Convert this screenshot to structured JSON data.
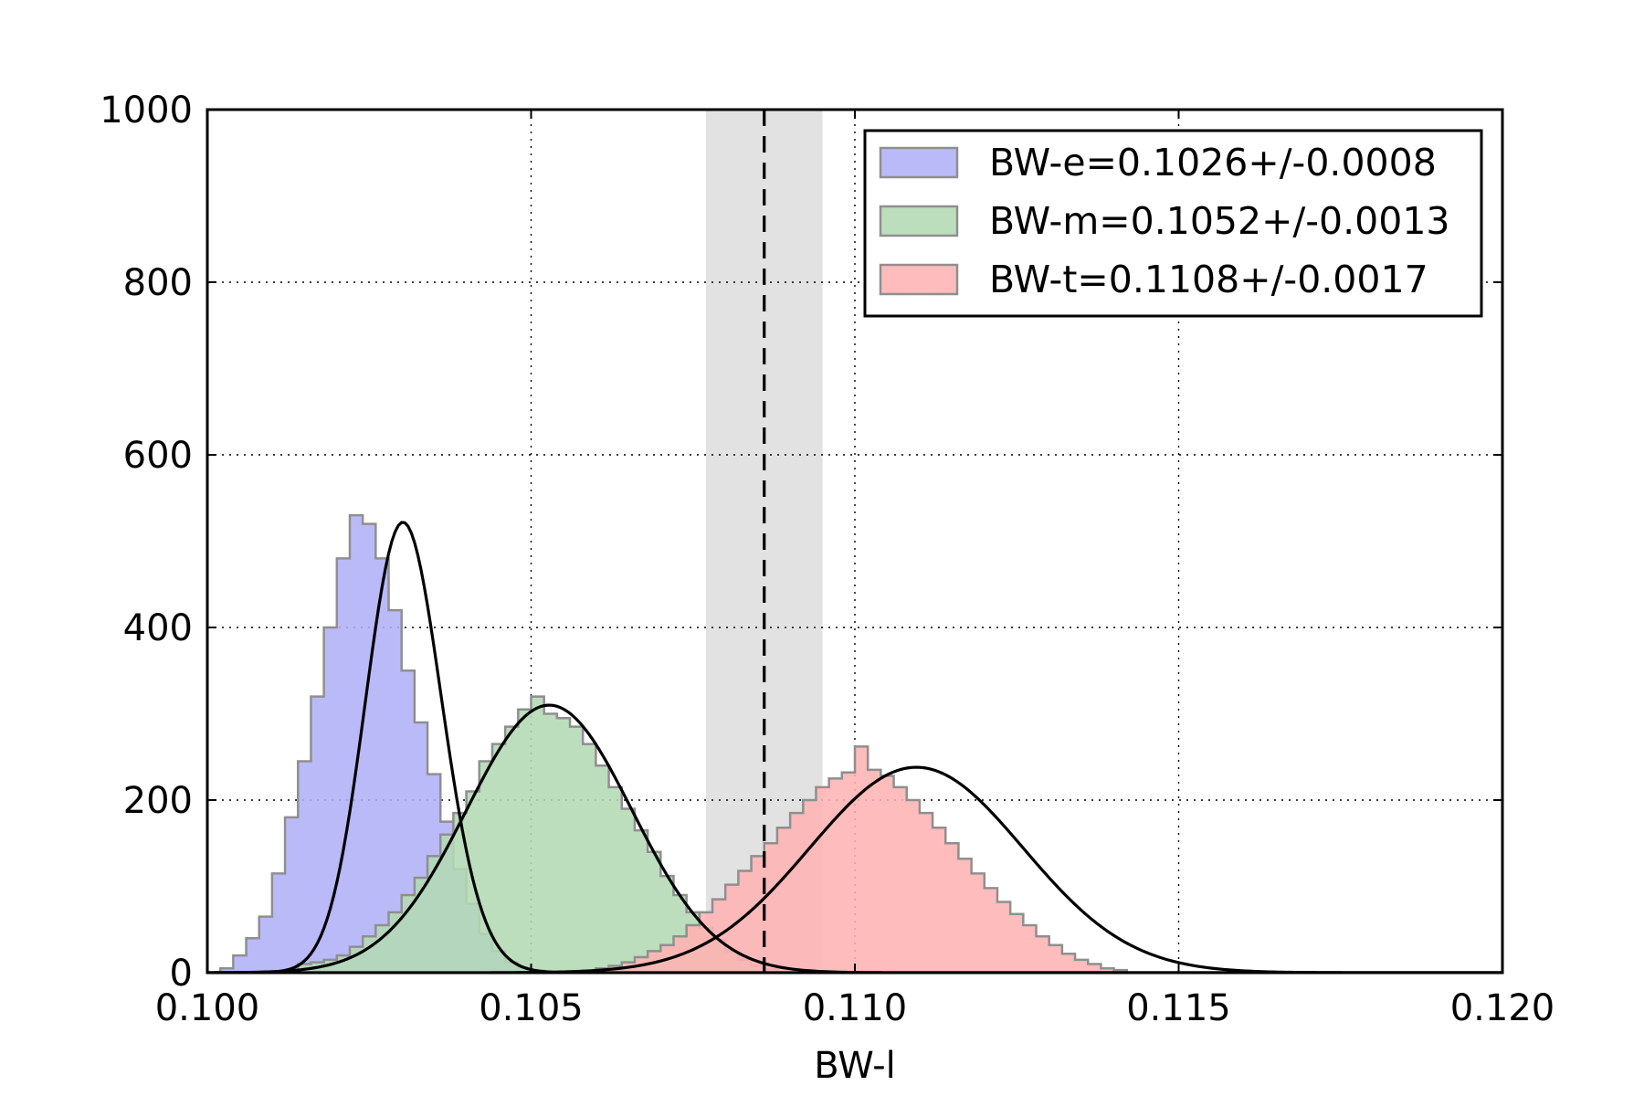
{
  "chart_data": {
    "type": "histogram",
    "xlabel": "BW-l",
    "ylabel": "",
    "xlim": [
      0.1,
      0.12
    ],
    "ylim": [
      0,
      1000
    ],
    "x_ticks": [
      "0.100",
      "0.105",
      "0.110",
      "0.115",
      "0.120"
    ],
    "x_tick_values": [
      0.1,
      0.105,
      0.11,
      0.115,
      0.12
    ],
    "y_ticks": [
      "0",
      "200",
      "400",
      "600",
      "800",
      "1000"
    ],
    "y_tick_values": [
      0,
      200,
      400,
      600,
      800,
      1000
    ],
    "grid": true,
    "legend_position": "top-right",
    "reference": {
      "value": 0.1086,
      "band": [
        0.1077,
        0.1095
      ],
      "band_color": "#e2e2e2"
    },
    "bin_width": 0.0002,
    "series": [
      {
        "name": "BW-e=0.1026+/-0.0008",
        "color": "#b0b0f8",
        "bin_start": 0.1002,
        "counts": [
          5,
          20,
          40,
          65,
          115,
          180,
          245,
          320,
          400,
          480,
          530,
          520,
          480,
          420,
          350,
          290,
          230,
          175,
          120,
          80,
          45,
          25,
          12,
          6,
          3,
          1
        ],
        "fit": {
          "mean": 0.10268,
          "sigma": 0.0007,
          "amplitude": 522,
          "skew": 0.9
        }
      },
      {
        "name": "BW-m=0.1052+/-0.0013",
        "color": "#b3dab3",
        "bin_start": 0.1014,
        "counts": [
          10,
          12,
          15,
          20,
          30,
          42,
          55,
          70,
          90,
          110,
          135,
          160,
          185,
          210,
          245,
          265,
          285,
          305,
          320,
          300,
          295,
          285,
          265,
          240,
          215,
          190,
          165,
          140,
          112,
          90,
          70,
          52,
          38,
          25,
          15,
          8,
          4
        ],
        "fit": {
          "mean": 0.10528,
          "sigma": 0.00128,
          "amplitude": 310,
          "skew": 0
        }
      },
      {
        "name": "BW-t=0.1108+/-0.0017",
        "color": "#ffb3b3",
        "bin_start": 0.106,
        "counts": [
          5,
          8,
          12,
          18,
          25,
          32,
          42,
          55,
          70,
          85,
          102,
          118,
          135,
          150,
          168,
          185,
          200,
          215,
          225,
          232,
          262,
          235,
          228,
          215,
          200,
          185,
          168,
          150,
          132,
          115,
          98,
          82,
          68,
          55,
          42,
          32,
          22,
          15,
          10,
          5,
          3
        ],
        "fit": {
          "mean": 0.11095,
          "sigma": 0.00165,
          "amplitude": 238,
          "skew": 0
        }
      }
    ]
  }
}
